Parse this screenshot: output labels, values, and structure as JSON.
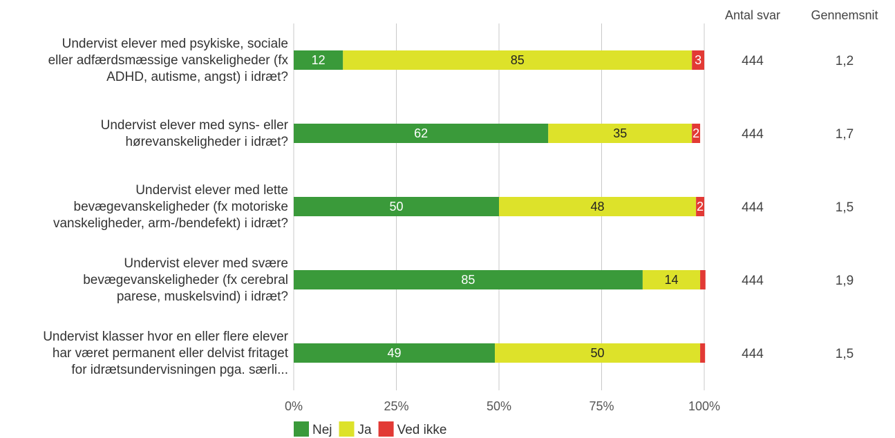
{
  "chart_data": {
    "type": "bar",
    "orientation": "horizontal",
    "stacked": true,
    "categories": [
      [
        "Undervist elever med psykiske, sociale",
        "eller adfærdsmæssige vanskeligheder (fx",
        "ADHD, autisme, angst) i idræt?"
      ],
      [
        "Undervist elever med syns- eller",
        "hørevanskeligheder i idræt?"
      ],
      [
        "Undervist elever med lette",
        "bevægevanskeligheder (fx motoriske",
        "vanskeligheder, arm-/bendefekt) i idræt?"
      ],
      [
        "Undervist elever med svære",
        "bevægevanskeligheder (fx cerebral",
        "parese, muskelsvind) i idræt?"
      ],
      [
        "Undervist klasser hvor en eller flere elever",
        "har været permanent eller delvist fritaget",
        "for idrætsundervisningen pga. særli..."
      ]
    ],
    "series": [
      {
        "name": "Nej",
        "color": "#3a9a3a",
        "label_color": "#ffffff",
        "values": [
          12,
          62,
          50,
          85,
          49
        ],
        "labels": [
          "12",
          "62",
          "50",
          "85",
          "49"
        ]
      },
      {
        "name": "Ja",
        "color": "#dde22a",
        "label_color": "#222222",
        "values": [
          85,
          35,
          48,
          14,
          50
        ],
        "labels": [
          "85",
          "35",
          "48",
          "14",
          "50"
        ]
      },
      {
        "name": "Ved ikke",
        "color": "#e23a35",
        "label_color": "#ffffff",
        "values": [
          3,
          2,
          2,
          1.3,
          1.2
        ],
        "labels": [
          "3",
          "2",
          "2",
          "",
          ""
        ]
      }
    ],
    "x_ticks": [
      "0%",
      "25%",
      "50%",
      "75%",
      "100%"
    ],
    "xlim": [
      0,
      100
    ],
    "grid": true,
    "legend_position": "bottom-left",
    "extra_columns": [
      {
        "header": "Antal svar",
        "values": [
          "444",
          "444",
          "444",
          "444",
          "444"
        ]
      },
      {
        "header": "Gennemsnit",
        "values": [
          "1,2",
          "1,7",
          "1,5",
          "1,9",
          "1,5"
        ]
      }
    ]
  }
}
